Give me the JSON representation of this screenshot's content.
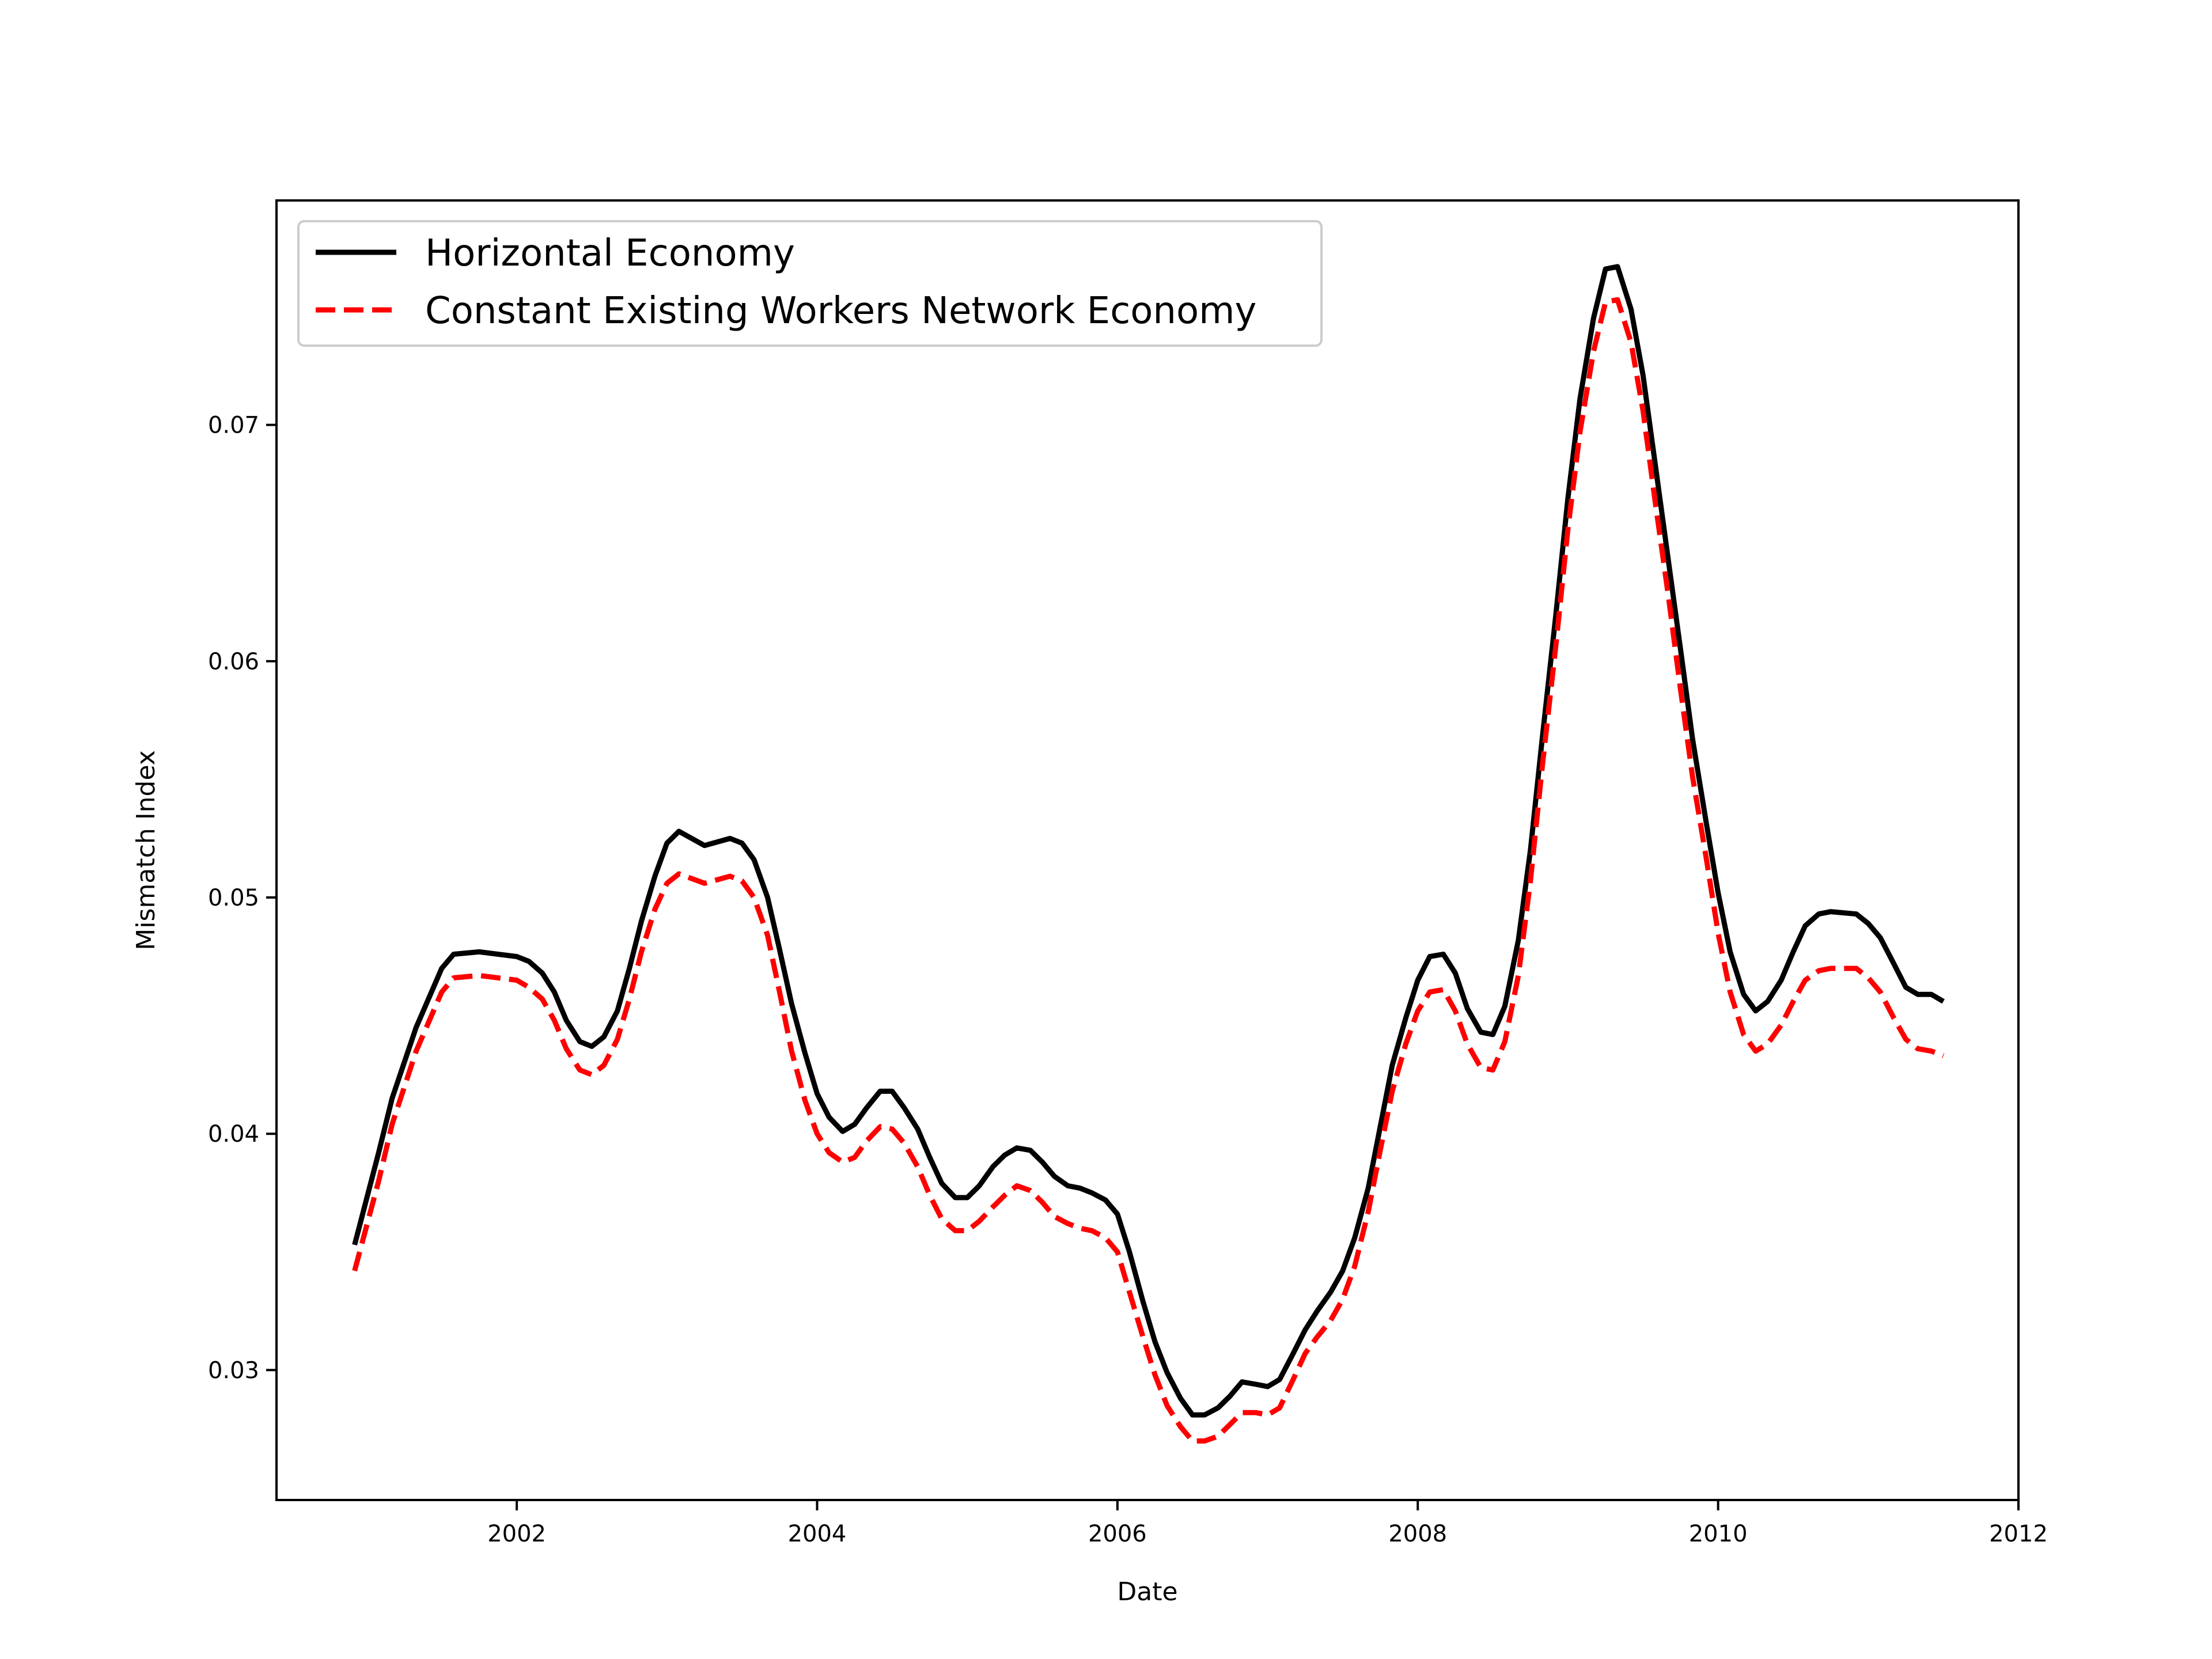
{
  "chart_data": {
    "type": "line",
    "title": "",
    "xlabel": "Date",
    "ylabel": "Mismatch Index",
    "xlim": [
      2000.4,
      2012.0
    ],
    "ylim": [
      0.0245,
      0.0795
    ],
    "x_ticks": [
      2002,
      2004,
      2006,
      2008,
      2010,
      2012
    ],
    "x_tick_labels": [
      "2002",
      "2004",
      "2006",
      "2008",
      "2010",
      "2012"
    ],
    "y_ticks": [
      0.03,
      0.04,
      0.05,
      0.06,
      0.07
    ],
    "y_tick_labels": [
      "0.03",
      "0.04",
      "0.05",
      "0.06",
      "0.07"
    ],
    "grid": false,
    "legend_position": "top-left",
    "colors": {
      "horizontal": "#000000",
      "network": "#ff0000"
    },
    "series": [
      {
        "name": "Horizontal Economy",
        "style": "solid",
        "points": [
          [
            2000.92,
            0.0353
          ],
          [
            2001.08,
            0.0392
          ],
          [
            2001.17,
            0.0415
          ],
          [
            2001.33,
            0.0445
          ],
          [
            2001.5,
            0.047
          ],
          [
            2001.58,
            0.0476
          ],
          [
            2001.75,
            0.0477
          ],
          [
            2002.0,
            0.0475
          ],
          [
            2002.08,
            0.0473
          ],
          [
            2002.17,
            0.0468
          ],
          [
            2002.25,
            0.046
          ],
          [
            2002.33,
            0.0448
          ],
          [
            2002.42,
            0.0439
          ],
          [
            2002.5,
            0.0437
          ],
          [
            2002.58,
            0.0441
          ],
          [
            2002.67,
            0.0452
          ],
          [
            2002.75,
            0.047
          ],
          [
            2002.83,
            0.049
          ],
          [
            2002.92,
            0.0509
          ],
          [
            2003.0,
            0.0523
          ],
          [
            2003.08,
            0.0528
          ],
          [
            2003.25,
            0.0522
          ],
          [
            2003.42,
            0.0525
          ],
          [
            2003.5,
            0.0523
          ],
          [
            2003.58,
            0.0516
          ],
          [
            2003.67,
            0.05
          ],
          [
            2003.75,
            0.0478
          ],
          [
            2003.83,
            0.0455
          ],
          [
            2003.92,
            0.0434
          ],
          [
            2004.0,
            0.0417
          ],
          [
            2004.08,
            0.0407
          ],
          [
            2004.17,
            0.0401
          ],
          [
            2004.25,
            0.0404
          ],
          [
            2004.33,
            0.0411
          ],
          [
            2004.42,
            0.0418
          ],
          [
            2004.5,
            0.0418
          ],
          [
            2004.58,
            0.0411
          ],
          [
            2004.67,
            0.0402
          ],
          [
            2004.75,
            0.039
          ],
          [
            2004.83,
            0.0379
          ],
          [
            2004.92,
            0.0373
          ],
          [
            2005.0,
            0.0373
          ],
          [
            2005.08,
            0.0378
          ],
          [
            2005.17,
            0.0386
          ],
          [
            2005.25,
            0.0391
          ],
          [
            2005.33,
            0.0394
          ],
          [
            2005.42,
            0.0393
          ],
          [
            2005.5,
            0.0388
          ],
          [
            2005.58,
            0.0382
          ],
          [
            2005.67,
            0.0378
          ],
          [
            2005.75,
            0.0377
          ],
          [
            2005.83,
            0.0375
          ],
          [
            2005.92,
            0.0372
          ],
          [
            2006.0,
            0.0366
          ],
          [
            2006.08,
            0.035
          ],
          [
            2006.17,
            0.0329
          ],
          [
            2006.25,
            0.0312
          ],
          [
            2006.33,
            0.0299
          ],
          [
            2006.42,
            0.0288
          ],
          [
            2006.5,
            0.0281
          ],
          [
            2006.58,
            0.0281
          ],
          [
            2006.67,
            0.0284
          ],
          [
            2006.75,
            0.0289
          ],
          [
            2006.83,
            0.0295
          ],
          [
            2006.92,
            0.0294
          ],
          [
            2007.0,
            0.0293
          ],
          [
            2007.08,
            0.0296
          ],
          [
            2007.17,
            0.0307
          ],
          [
            2007.25,
            0.0317
          ],
          [
            2007.33,
            0.0325
          ],
          [
            2007.42,
            0.0333
          ],
          [
            2007.5,
            0.0342
          ],
          [
            2007.58,
            0.0356
          ],
          [
            2007.67,
            0.0377
          ],
          [
            2007.75,
            0.0403
          ],
          [
            2007.83,
            0.0429
          ],
          [
            2007.92,
            0.0449
          ],
          [
            2008.0,
            0.0465
          ],
          [
            2008.08,
            0.0475
          ],
          [
            2008.17,
            0.0476
          ],
          [
            2008.25,
            0.0468
          ],
          [
            2008.33,
            0.0453
          ],
          [
            2008.42,
            0.0443
          ],
          [
            2008.5,
            0.0442
          ],
          [
            2008.58,
            0.0454
          ],
          [
            2008.67,
            0.0482
          ],
          [
            2008.75,
            0.052
          ],
          [
            2008.83,
            0.0568
          ],
          [
            2008.92,
            0.062
          ],
          [
            2009.0,
            0.0669
          ],
          [
            2009.08,
            0.0711
          ],
          [
            2009.17,
            0.0745
          ],
          [
            2009.25,
            0.0766
          ],
          [
            2009.33,
            0.0767
          ],
          [
            2009.42,
            0.0749
          ],
          [
            2009.5,
            0.0721
          ],
          [
            2009.58,
            0.0684
          ],
          [
            2009.67,
            0.0642
          ],
          [
            2009.75,
            0.0605
          ],
          [
            2009.83,
            0.0567
          ],
          [
            2009.92,
            0.0532
          ],
          [
            2010.0,
            0.0502
          ],
          [
            2010.08,
            0.0477
          ],
          [
            2010.17,
            0.0459
          ],
          [
            2010.25,
            0.0452
          ],
          [
            2010.33,
            0.0456
          ],
          [
            2010.42,
            0.0465
          ],
          [
            2010.5,
            0.0477
          ],
          [
            2010.58,
            0.0488
          ],
          [
            2010.67,
            0.0493
          ],
          [
            2010.75,
            0.0494
          ],
          [
            2010.92,
            0.0493
          ],
          [
            2011.0,
            0.0489
          ],
          [
            2011.08,
            0.0483
          ],
          [
            2011.17,
            0.0472
          ],
          [
            2011.25,
            0.0462
          ],
          [
            2011.33,
            0.0459
          ],
          [
            2011.42,
            0.0459
          ],
          [
            2011.5,
            0.0456
          ]
        ]
      },
      {
        "name": "Constant Existing Workers Network Economy",
        "style": "dashed",
        "points": [
          [
            2000.92,
            0.0342
          ],
          [
            2001.08,
            0.038
          ],
          [
            2001.17,
            0.0404
          ],
          [
            2001.33,
            0.0435
          ],
          [
            2001.5,
            0.046
          ],
          [
            2001.58,
            0.0466
          ],
          [
            2001.75,
            0.0467
          ],
          [
            2002.0,
            0.0465
          ],
          [
            2002.08,
            0.0462
          ],
          [
            2002.17,
            0.0457
          ],
          [
            2002.25,
            0.0448
          ],
          [
            2002.33,
            0.0436
          ],
          [
            2002.42,
            0.0427
          ],
          [
            2002.5,
            0.0425
          ],
          [
            2002.58,
            0.0429
          ],
          [
            2002.67,
            0.044
          ],
          [
            2002.75,
            0.0457
          ],
          [
            2002.83,
            0.0477
          ],
          [
            2002.92,
            0.0495
          ],
          [
            2003.0,
            0.0506
          ],
          [
            2003.08,
            0.051
          ],
          [
            2003.25,
            0.0506
          ],
          [
            2003.42,
            0.0509
          ],
          [
            2003.5,
            0.0507
          ],
          [
            2003.58,
            0.05
          ],
          [
            2003.67,
            0.0484
          ],
          [
            2003.75,
            0.046
          ],
          [
            2003.83,
            0.0435
          ],
          [
            2003.92,
            0.0414
          ],
          [
            2004.0,
            0.04
          ],
          [
            2004.08,
            0.0392
          ],
          [
            2004.17,
            0.0388
          ],
          [
            2004.25,
            0.039
          ],
          [
            2004.33,
            0.0397
          ],
          [
            2004.42,
            0.0403
          ],
          [
            2004.5,
            0.0402
          ],
          [
            2004.58,
            0.0396
          ],
          [
            2004.67,
            0.0386
          ],
          [
            2004.75,
            0.0374
          ],
          [
            2004.83,
            0.0364
          ],
          [
            2004.92,
            0.0359
          ],
          [
            2005.0,
            0.0359
          ],
          [
            2005.08,
            0.0363
          ],
          [
            2005.17,
            0.0369
          ],
          [
            2005.25,
            0.0374
          ],
          [
            2005.33,
            0.0378
          ],
          [
            2005.42,
            0.0376
          ],
          [
            2005.5,
            0.0371
          ],
          [
            2005.58,
            0.0365
          ],
          [
            2005.67,
            0.0362
          ],
          [
            2005.75,
            0.036
          ],
          [
            2005.83,
            0.0359
          ],
          [
            2005.92,
            0.0356
          ],
          [
            2006.0,
            0.035
          ],
          [
            2006.08,
            0.0333
          ],
          [
            2006.17,
            0.0314
          ],
          [
            2006.25,
            0.0298
          ],
          [
            2006.33,
            0.0285
          ],
          [
            2006.42,
            0.0276
          ],
          [
            2006.5,
            0.027
          ],
          [
            2006.58,
            0.027
          ],
          [
            2006.67,
            0.0272
          ],
          [
            2006.75,
            0.0277
          ],
          [
            2006.83,
            0.0282
          ],
          [
            2006.92,
            0.0282
          ],
          [
            2007.0,
            0.0281
          ],
          [
            2007.08,
            0.0284
          ],
          [
            2007.17,
            0.0296
          ],
          [
            2007.25,
            0.0307
          ],
          [
            2007.33,
            0.0314
          ],
          [
            2007.42,
            0.0321
          ],
          [
            2007.5,
            0.033
          ],
          [
            2007.58,
            0.0344
          ],
          [
            2007.67,
            0.0367
          ],
          [
            2007.75,
            0.0393
          ],
          [
            2007.83,
            0.0418
          ],
          [
            2007.92,
            0.0438
          ],
          [
            2008.0,
            0.0452
          ],
          [
            2008.08,
            0.046
          ],
          [
            2008.17,
            0.0461
          ],
          [
            2008.25,
            0.0452
          ],
          [
            2008.33,
            0.0438
          ],
          [
            2008.42,
            0.0428
          ],
          [
            2008.5,
            0.0427
          ],
          [
            2008.58,
            0.0439
          ],
          [
            2008.67,
            0.0467
          ],
          [
            2008.75,
            0.0507
          ],
          [
            2008.83,
            0.0556
          ],
          [
            2008.92,
            0.0607
          ],
          [
            2009.0,
            0.0656
          ],
          [
            2009.08,
            0.0697
          ],
          [
            2009.17,
            0.0731
          ],
          [
            2009.25,
            0.0752
          ],
          [
            2009.33,
            0.0753
          ],
          [
            2009.42,
            0.0735
          ],
          [
            2009.5,
            0.0706
          ],
          [
            2009.58,
            0.0668
          ],
          [
            2009.67,
            0.0627
          ],
          [
            2009.75,
            0.0588
          ],
          [
            2009.83,
            0.0551
          ],
          [
            2009.92,
            0.0517
          ],
          [
            2010.0,
            0.0485
          ],
          [
            2010.08,
            0.046
          ],
          [
            2010.17,
            0.0442
          ],
          [
            2010.25,
            0.0435
          ],
          [
            2010.33,
            0.0438
          ],
          [
            2010.42,
            0.0446
          ],
          [
            2010.5,
            0.0456
          ],
          [
            2010.58,
            0.0465
          ],
          [
            2010.67,
            0.0469
          ],
          [
            2010.75,
            0.047
          ],
          [
            2010.92,
            0.047
          ],
          [
            2011.0,
            0.0466
          ],
          [
            2011.08,
            0.046
          ],
          [
            2011.17,
            0.0449
          ],
          [
            2011.25,
            0.044
          ],
          [
            2011.33,
            0.0436
          ],
          [
            2011.42,
            0.0435
          ],
          [
            2011.5,
            0.0433
          ]
        ]
      }
    ]
  }
}
